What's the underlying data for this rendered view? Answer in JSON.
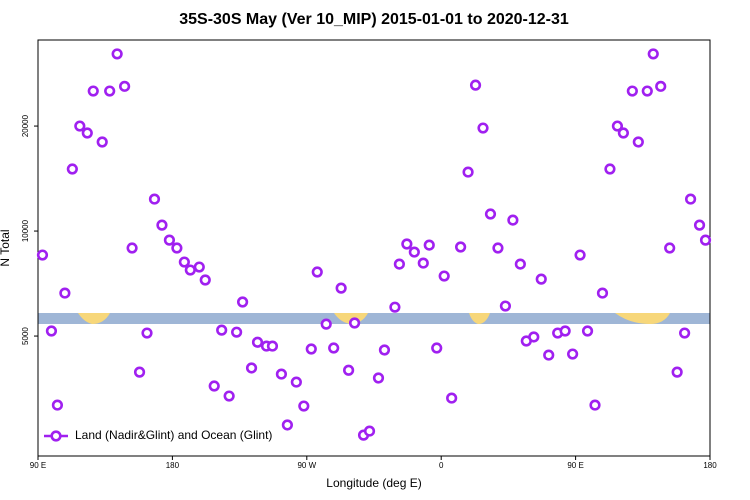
{
  "chart_data": {
    "type": "scatter",
    "title": "35S-30S May (Ver 10_MIP)   2015-01-01 to 2020-12-31",
    "x_label": "Longitude (deg E)",
    "y_label": "N Total",
    "xlim": [
      90,
      540
    ],
    "xticks": [
      {
        "value": 90,
        "label": "90 E"
      },
      180,
      {
        "value": 270,
        "label": "90 W"
      },
      {
        "value": 360,
        "label": "0"
      },
      {
        "value": 450,
        "label": "90 E"
      },
      {
        "value": 540,
        "label": "180"
      }
    ],
    "ylim": [
      2265,
      35300
    ],
    "yticks": [
      5000,
      10000,
      20000
    ],
    "ylog": true,
    "legend": "lower left",
    "x": [
      93,
      99,
      103,
      108,
      113,
      118,
      123,
      127,
      133,
      138,
      143,
      148,
      153,
      158,
      163,
      168,
      173,
      178,
      183,
      188,
      192,
      198,
      202,
      208,
      213,
      218,
      223,
      227,
      233,
      237,
      243,
      247,
      253,
      257,
      263,
      268,
      273,
      277,
      283,
      288,
      293,
      298,
      302,
      308,
      312,
      318,
      322,
      329,
      332,
      337,
      342,
      348,
      352,
      357,
      362,
      367,
      373,
      378,
      383,
      388,
      393,
      398,
      403,
      408,
      413,
      417,
      422,
      427,
      432,
      438,
      443,
      448,
      453,
      458,
      463,
      468,
      473,
      478,
      482,
      488,
      492,
      498,
      502,
      507,
      513,
      518,
      523,
      527,
      533,
      537
    ],
    "series": [
      {
        "name": "Land (Nadir&Glint) and Ocean (Glint)",
        "color": "#a020f0",
        "values": [
          8535,
          5170,
          3170,
          6640,
          15060,
          20000,
          19100,
          25200,
          18000,
          25200,
          32200,
          26000,
          8940,
          3940,
          5100,
          12350,
          10400,
          9420,
          8940,
          8150,
          7730,
          7885,
          7240,
          3595,
          5200,
          3365,
          5130,
          6260,
          4050,
          4800,
          4680,
          4680,
          3890,
          2780,
          3690,
          3150,
          4590,
          7630,
          5410,
          4620,
          6860,
          3990,
          5450,
          2600,
          2670,
          3790,
          4560,
          6050,
          8040,
          9180,
          8705,
          8095,
          9115,
          4620,
          7430,
          3320,
          9000,
          14760,
          26200,
          19740,
          11190,
          8940,
          6095,
          10750,
          8040,
          4840,
          4970,
          7280,
          4410,
          5100,
          5170,
          4440,
          8535,
          5170,
          3170,
          6640,
          15060,
          20000,
          19100,
          25200,
          18000,
          25200,
          32200,
          26000,
          8940,
          3940,
          5100,
          12350,
          10400,
          9420
        ]
      }
    ]
  }
}
